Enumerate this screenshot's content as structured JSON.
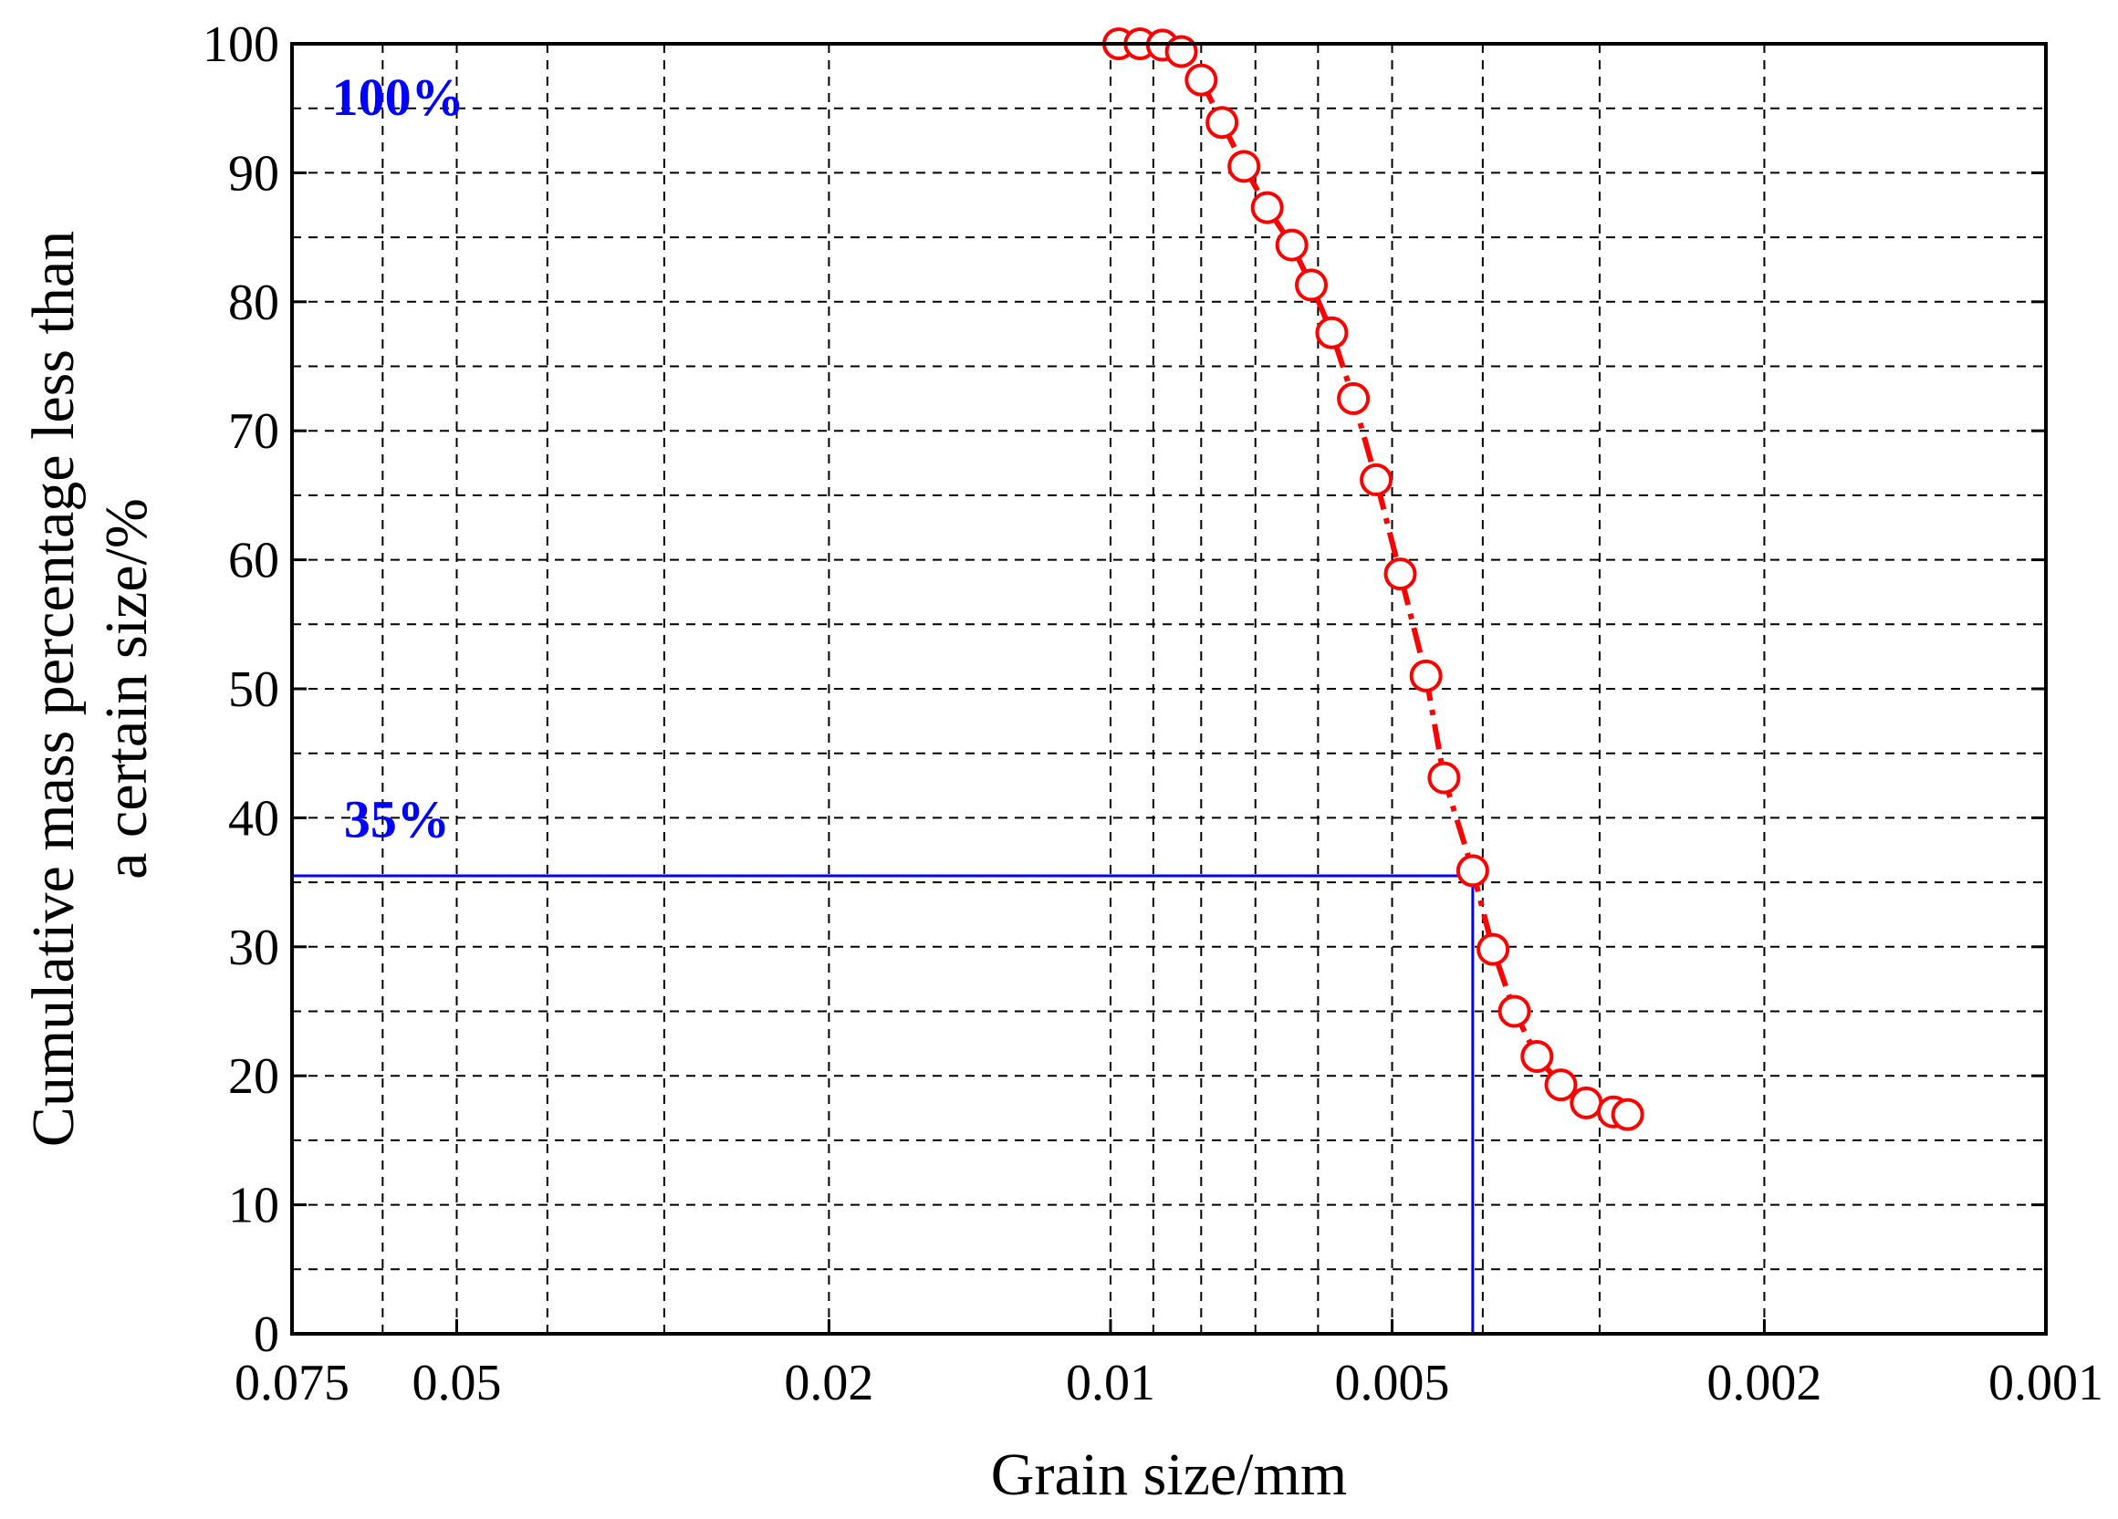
{
  "chart_data": {
    "type": "scatter",
    "title": "",
    "xlabel": "Grain size/mm",
    "ylabel_lines": [
      "Cumulative mass percentage less than",
      "a certain size/%"
    ],
    "x_scale": "log",
    "x_reversed": true,
    "xlim": [
      0.075,
      0.001
    ],
    "ylim": [
      0,
      100
    ],
    "x_tick_labels": [
      {
        "value": 0.075,
        "label": "0.075"
      },
      {
        "value": 0.05,
        "label": "0.05"
      },
      {
        "value": 0.02,
        "label": "0.02"
      },
      {
        "value": 0.01,
        "label": "0.01"
      },
      {
        "value": 0.005,
        "label": "0.005"
      },
      {
        "value": 0.002,
        "label": "0.002"
      },
      {
        "value": 0.001,
        "label": "0.001"
      }
    ],
    "x_gridlines": [
      0.06,
      0.05,
      0.04,
      0.03,
      0.02,
      0.01,
      0.009,
      0.008,
      0.007,
      0.006,
      0.005,
      0.004,
      0.003,
      0.002
    ],
    "y_ticks": [
      0,
      10,
      20,
      30,
      40,
      50,
      60,
      70,
      80,
      90,
      100
    ],
    "y_tick_labels": [
      "0",
      "10",
      "20",
      "30",
      "40",
      "50",
      "60",
      "70",
      "80",
      "90",
      "100"
    ],
    "y_gridlines": [
      5,
      10,
      15,
      20,
      25,
      30,
      35,
      40,
      45,
      50,
      55,
      60,
      65,
      70,
      75,
      80,
      85,
      90,
      95
    ],
    "grid": true,
    "grid_style": "dashed",
    "series": [
      {
        "color": "#ff0000",
        "marker": "open-circle",
        "line": "dash-dot",
        "points": [
          {
            "x": 0.0098,
            "y": 100.0
          },
          {
            "x": 0.0093,
            "y": 100.0
          },
          {
            "x": 0.0088,
            "y": 99.9
          },
          {
            "x": 0.0084,
            "y": 99.4
          },
          {
            "x": 0.008,
            "y": 97.2
          },
          {
            "x": 0.0076,
            "y": 93.9
          },
          {
            "x": 0.0072,
            "y": 90.5
          },
          {
            "x": 0.0068,
            "y": 87.3
          },
          {
            "x": 0.0064,
            "y": 84.4
          },
          {
            "x": 0.0061,
            "y": 81.3
          },
          {
            "x": 0.0058,
            "y": 77.6
          },
          {
            "x": 0.0055,
            "y": 72.5
          },
          {
            "x": 0.0052,
            "y": 66.2
          },
          {
            "x": 0.0049,
            "y": 58.9
          },
          {
            "x": 0.0046,
            "y": 51.0
          },
          {
            "x": 0.0044,
            "y": 43.1
          },
          {
            "x": 0.0041,
            "y": 35.9
          },
          {
            "x": 0.0039,
            "y": 29.8
          },
          {
            "x": 0.0037,
            "y": 25.0
          },
          {
            "x": 0.0035,
            "y": 21.5
          },
          {
            "x": 0.0033,
            "y": 19.3
          },
          {
            "x": 0.0031,
            "y": 17.9
          },
          {
            "x": 0.0029,
            "y": 17.2
          },
          {
            "x": 0.0028,
            "y": 17.0
          }
        ]
      }
    ],
    "reference_lines": {
      "color": "#0000ff",
      "horizontal_y": 35.5,
      "vertical_x": 0.0041
    },
    "annotations": [
      {
        "text": "100%",
        "x": 0.068,
        "y": 94.5,
        "color": "#0000ff"
      },
      {
        "text": "35%",
        "x": 0.066,
        "y": 38.5,
        "color": "#0000ff"
      }
    ]
  }
}
